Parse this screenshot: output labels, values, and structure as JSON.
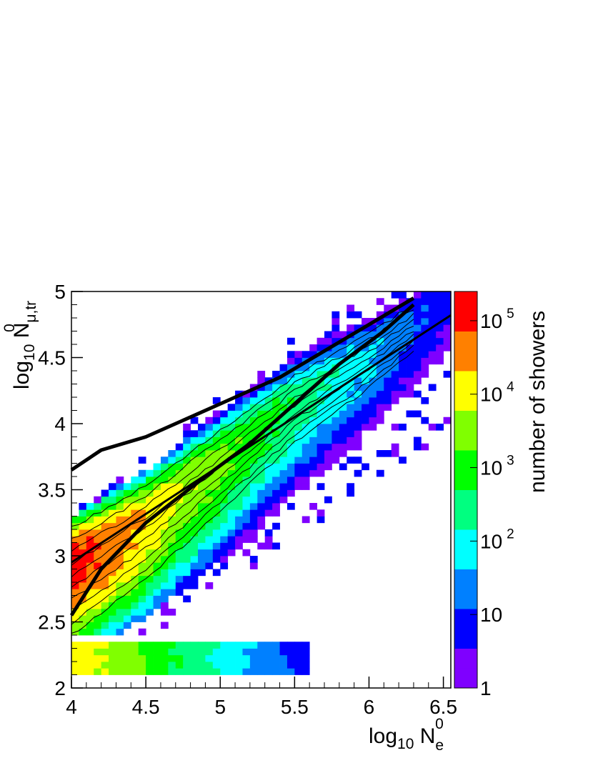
{
  "chart_data": {
    "type": "heatmap",
    "x_axis": {
      "label": "log10 Ne0",
      "range": [
        4,
        6.55
      ],
      "ticks": [
        4,
        4.5,
        5,
        5.5,
        6,
        6.5
      ],
      "tick_labels": [
        "4",
        "4.5",
        "5",
        "5.5",
        "6",
        "6.5"
      ]
    },
    "y_axis": {
      "label": "log10 Nμ,tr0",
      "range": [
        2,
        5
      ],
      "ticks": [
        2,
        2.5,
        3,
        3.5,
        4,
        4.5,
        5
      ],
      "tick_labels": [
        "2",
        "2.5",
        "3",
        "3.5",
        "4",
        "4.5",
        "5"
      ]
    },
    "z_axis": {
      "label": "number of showers",
      "scale": "log",
      "range": [
        1,
        250000
      ],
      "tick_labels": [
        "1",
        "10",
        "10 2",
        "10 3",
        "10 4",
        "10 5"
      ],
      "colors": [
        "#7f00ff",
        "#0000ff",
        "#0080ff",
        "#00ffff",
        "#00ff80",
        "#00ff00",
        "#80ff00",
        "#ffff00",
        "#ff8000",
        "#ff0000"
      ]
    },
    "main_band": {
      "description_points": [
        [
          4.0,
          2.95
        ],
        [
          4.5,
          3.3
        ],
        [
          5.0,
          3.75
        ],
        [
          5.5,
          4.2
        ],
        [
          6.0,
          4.55
        ],
        [
          6.5,
          4.95
        ]
      ],
      "width_upper": 0.35,
      "width_lower": 0.75
    },
    "low_band": {
      "y_range": [
        2.1,
        2.35
      ],
      "x_extent": [
        4.0,
        5.5
      ]
    },
    "fit_line": {
      "x": [
        4.0,
        6.55
      ],
      "y": [
        2.95,
        4.82
      ]
    },
    "thick_contour_upper": [
      [
        4.0,
        3.65
      ],
      [
        4.2,
        3.8
      ],
      [
        4.5,
        3.9
      ],
      [
        4.8,
        4.05
      ],
      [
        5.1,
        4.2
      ],
      [
        5.4,
        4.35
      ],
      [
        5.7,
        4.55
      ],
      [
        6.0,
        4.75
      ],
      [
        6.3,
        4.95
      ]
    ],
    "thick_contour_lower": [
      [
        4.0,
        2.55
      ],
      [
        4.2,
        2.9
      ],
      [
        4.5,
        3.25
      ],
      [
        4.9,
        3.6
      ],
      [
        5.2,
        3.85
      ],
      [
        5.5,
        4.15
      ],
      [
        5.8,
        4.45
      ],
      [
        6.1,
        4.7
      ],
      [
        6.3,
        4.9
      ]
    ]
  }
}
